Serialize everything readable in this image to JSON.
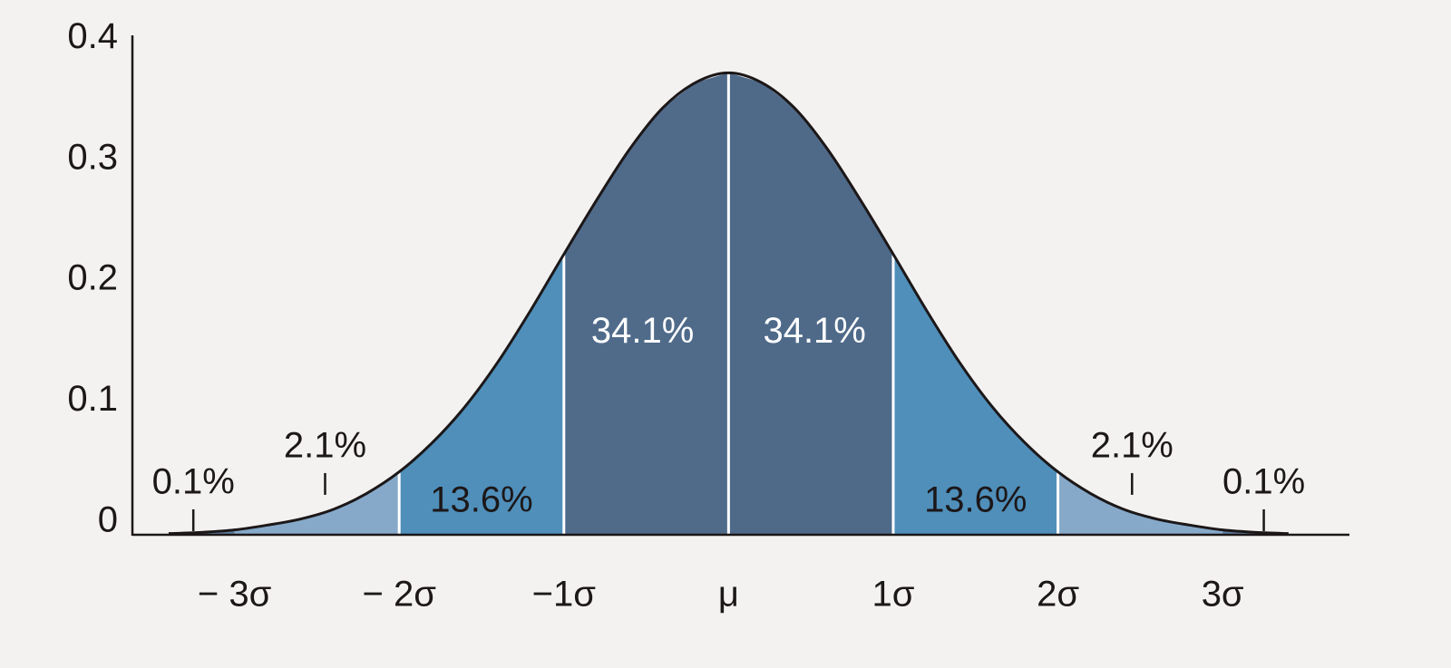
{
  "chart_data": {
    "type": "area",
    "xlim": [
      -3.62,
      3.77
    ],
    "ylim": [
      0,
      0.413
    ],
    "yticks": [
      0,
      0.1,
      0.2,
      0.3,
      0.4
    ],
    "xticks": [
      {
        "value": -3,
        "label": "− 3σ"
      },
      {
        "value": -2,
        "label": "− 2σ"
      },
      {
        "value": -1,
        "label": "−1σ"
      },
      {
        "value": 0,
        "label": "μ"
      },
      {
        "value": 1,
        "label": "1σ"
      },
      {
        "value": 2,
        "label": "2σ"
      },
      {
        "value": 3,
        "label": "3σ"
      }
    ],
    "curve": {
      "color": "#1c1718",
      "x": [
        -3.4,
        -3.2,
        -3.0,
        -2.8,
        -2.6,
        -2.4,
        -2.2,
        -2.0,
        -1.8,
        -1.6,
        -1.4,
        -1.2,
        -1.0,
        -0.8,
        -0.6,
        -0.4,
        -0.2,
        0,
        0.2,
        0.4,
        0.6,
        0.8,
        1.0,
        1.2,
        1.4,
        1.6,
        1.8,
        2.0,
        2.2,
        2.4,
        2.6,
        2.8,
        3.0,
        3.2,
        3.4
      ],
      "y": [
        0.001,
        0.002,
        0.004,
        0.008,
        0.013,
        0.021,
        0.034,
        0.052,
        0.076,
        0.106,
        0.143,
        0.186,
        0.232,
        0.277,
        0.319,
        0.353,
        0.374,
        0.382,
        0.374,
        0.353,
        0.319,
        0.277,
        0.232,
        0.186,
        0.143,
        0.106,
        0.076,
        0.052,
        0.034,
        0.021,
        0.013,
        0.008,
        0.004,
        0.002,
        0.001
      ]
    },
    "segments": {
      "edges": [
        -3.4,
        -3,
        -2,
        -1,
        0,
        1,
        2,
        3,
        3.4
      ],
      "values": [
        0.1,
        2.1,
        13.6,
        34.1,
        34.1,
        13.6,
        2.1,
        0.1
      ],
      "value_labels": [
        "0.1%",
        "2.1%",
        "13.6%",
        "34.1%",
        "34.1%",
        "13.6%",
        "2.1%",
        "0.1%"
      ],
      "colors": [
        "#5f7f9f",
        "#86a9c9",
        "#4f8fba",
        "#506b8a",
        "#4f6a89",
        "#4f8fba",
        "#86a9c9",
        "#5f7f9f"
      ]
    }
  }
}
